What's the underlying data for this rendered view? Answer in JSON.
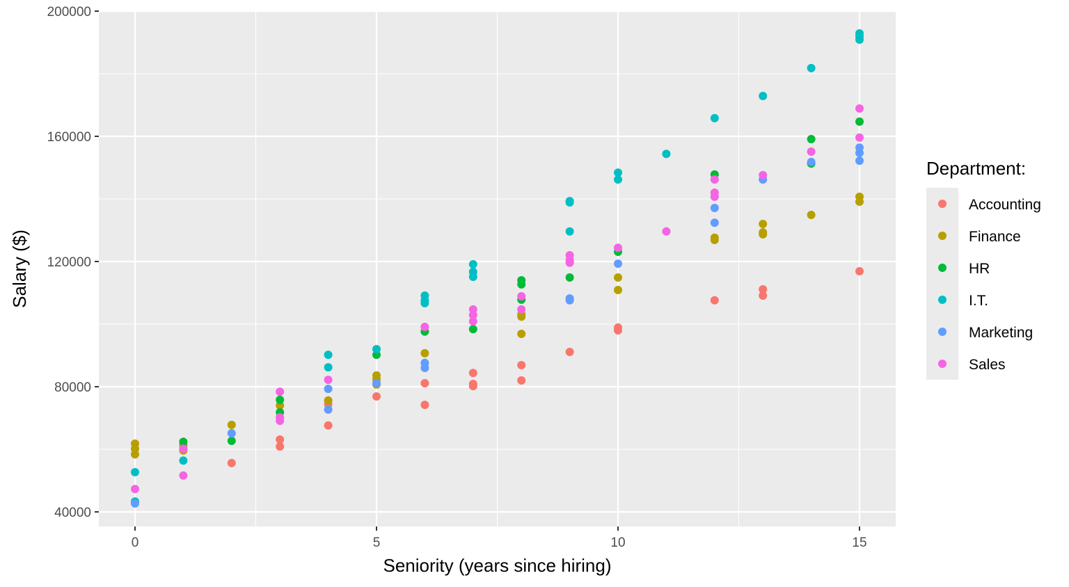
{
  "chart_data": {
    "type": "scatter",
    "title": "",
    "xlabel": "Seniority (years since hiring)",
    "ylabel": "Salary ($)",
    "xlim": [
      -0.75,
      15.75
    ],
    "ylim": [
      35300,
      200000
    ],
    "x_ticks": [
      0,
      5,
      10,
      15
    ],
    "x_tick_labels": [
      "0",
      "5",
      "10",
      "15"
    ],
    "y_ticks": [
      40000,
      80000,
      120000,
      160000,
      200000
    ],
    "y_tick_labels": [
      "40000",
      "80000",
      "120000",
      "160000",
      "200000"
    ],
    "grid": true,
    "legend": {
      "title": "Department:",
      "position": "right"
    },
    "series": [
      {
        "name": "Accounting",
        "color": "#F8766D",
        "points": [
          [
            2,
            55600
          ],
          [
            3,
            63100
          ],
          [
            3,
            60900
          ],
          [
            4,
            74400
          ],
          [
            4,
            67600
          ],
          [
            5,
            76900
          ],
          [
            6,
            81100
          ],
          [
            6,
            74200
          ],
          [
            7,
            84400
          ],
          [
            7,
            80900
          ],
          [
            7,
            80200
          ],
          [
            8,
            86900
          ],
          [
            8,
            82000
          ],
          [
            9,
            91100
          ],
          [
            10,
            98900
          ],
          [
            10,
            98000
          ],
          [
            12,
            107600
          ],
          [
            13,
            111100
          ],
          [
            13,
            109100
          ],
          [
            15,
            116900
          ]
        ]
      },
      {
        "name": "Finance",
        "color": "#B79F00",
        "points": [
          [
            0,
            61800
          ],
          [
            0,
            60200
          ],
          [
            0,
            58400
          ],
          [
            1,
            61300
          ],
          [
            1,
            59600
          ],
          [
            2,
            67800
          ],
          [
            3,
            74000
          ],
          [
            4,
            75600
          ],
          [
            5,
            83600
          ],
          [
            5,
            82400
          ],
          [
            5,
            80700
          ],
          [
            6,
            90700
          ],
          [
            8,
            103100
          ],
          [
            8,
            102400
          ],
          [
            8,
            96900
          ],
          [
            10,
            114900
          ],
          [
            10,
            110900
          ],
          [
            12,
            127600
          ],
          [
            12,
            126900
          ],
          [
            13,
            132000
          ],
          [
            13,
            129300
          ],
          [
            13,
            128700
          ],
          [
            14,
            134900
          ],
          [
            15,
            140700
          ],
          [
            15,
            139100
          ]
        ]
      },
      {
        "name": "HR",
        "color": "#00BA38",
        "points": [
          [
            1,
            62400
          ],
          [
            2,
            62700
          ],
          [
            3,
            75800
          ],
          [
            3,
            71800
          ],
          [
            5,
            90200
          ],
          [
            6,
            97600
          ],
          [
            7,
            98400
          ],
          [
            8,
            114000
          ],
          [
            8,
            112700
          ],
          [
            8,
            107800
          ],
          [
            9,
            114900
          ],
          [
            10,
            123100
          ],
          [
            12,
            147800
          ],
          [
            14,
            159100
          ],
          [
            14,
            151300
          ],
          [
            15,
            164700
          ]
        ]
      },
      {
        "name": "I.T.",
        "color": "#00BFC4",
        "points": [
          [
            0,
            52700
          ],
          [
            0,
            43300
          ],
          [
            1,
            56400
          ],
          [
            4,
            90200
          ],
          [
            4,
            86200
          ],
          [
            5,
            92000
          ],
          [
            6,
            109100
          ],
          [
            6,
            107600
          ],
          [
            6,
            106700
          ],
          [
            7,
            119100
          ],
          [
            7,
            116700
          ],
          [
            7,
            115100
          ],
          [
            9,
            139300
          ],
          [
            9,
            138900
          ],
          [
            9,
            129600
          ],
          [
            10,
            148400
          ],
          [
            10,
            146200
          ],
          [
            11,
            154400
          ],
          [
            12,
            165800
          ],
          [
            13,
            172900
          ],
          [
            14,
            181800
          ],
          [
            15,
            192900
          ],
          [
            15,
            192000
          ],
          [
            15,
            190900
          ]
        ]
      },
      {
        "name": "Marketing",
        "color": "#619CFF",
        "points": [
          [
            0,
            42700
          ],
          [
            2,
            65100
          ],
          [
            4,
            79300
          ],
          [
            4,
            72700
          ],
          [
            5,
            81100
          ],
          [
            6,
            87600
          ],
          [
            6,
            86000
          ],
          [
            9,
            108200
          ],
          [
            9,
            107600
          ],
          [
            10,
            119300
          ],
          [
            12,
            137100
          ],
          [
            12,
            132400
          ],
          [
            13,
            146200
          ],
          [
            14,
            151800
          ],
          [
            15,
            156400
          ],
          [
            15,
            154700
          ],
          [
            15,
            152200
          ]
        ]
      },
      {
        "name": "Sales",
        "color": "#F564E3",
        "points": [
          [
            0,
            47300
          ],
          [
            1,
            60200
          ],
          [
            1,
            51600
          ],
          [
            3,
            78400
          ],
          [
            3,
            70200
          ],
          [
            3,
            69100
          ],
          [
            4,
            82200
          ],
          [
            6,
            99100
          ],
          [
            7,
            104700
          ],
          [
            7,
            102900
          ],
          [
            7,
            100900
          ],
          [
            8,
            108900
          ],
          [
            8,
            104700
          ],
          [
            9,
            122000
          ],
          [
            9,
            120400
          ],
          [
            9,
            119600
          ],
          [
            10,
            124400
          ],
          [
            11,
            129600
          ],
          [
            12,
            146200
          ],
          [
            12,
            142000
          ],
          [
            12,
            140700
          ],
          [
            13,
            147600
          ],
          [
            14,
            155100
          ],
          [
            15,
            168900
          ],
          [
            15,
            159600
          ]
        ]
      }
    ]
  }
}
